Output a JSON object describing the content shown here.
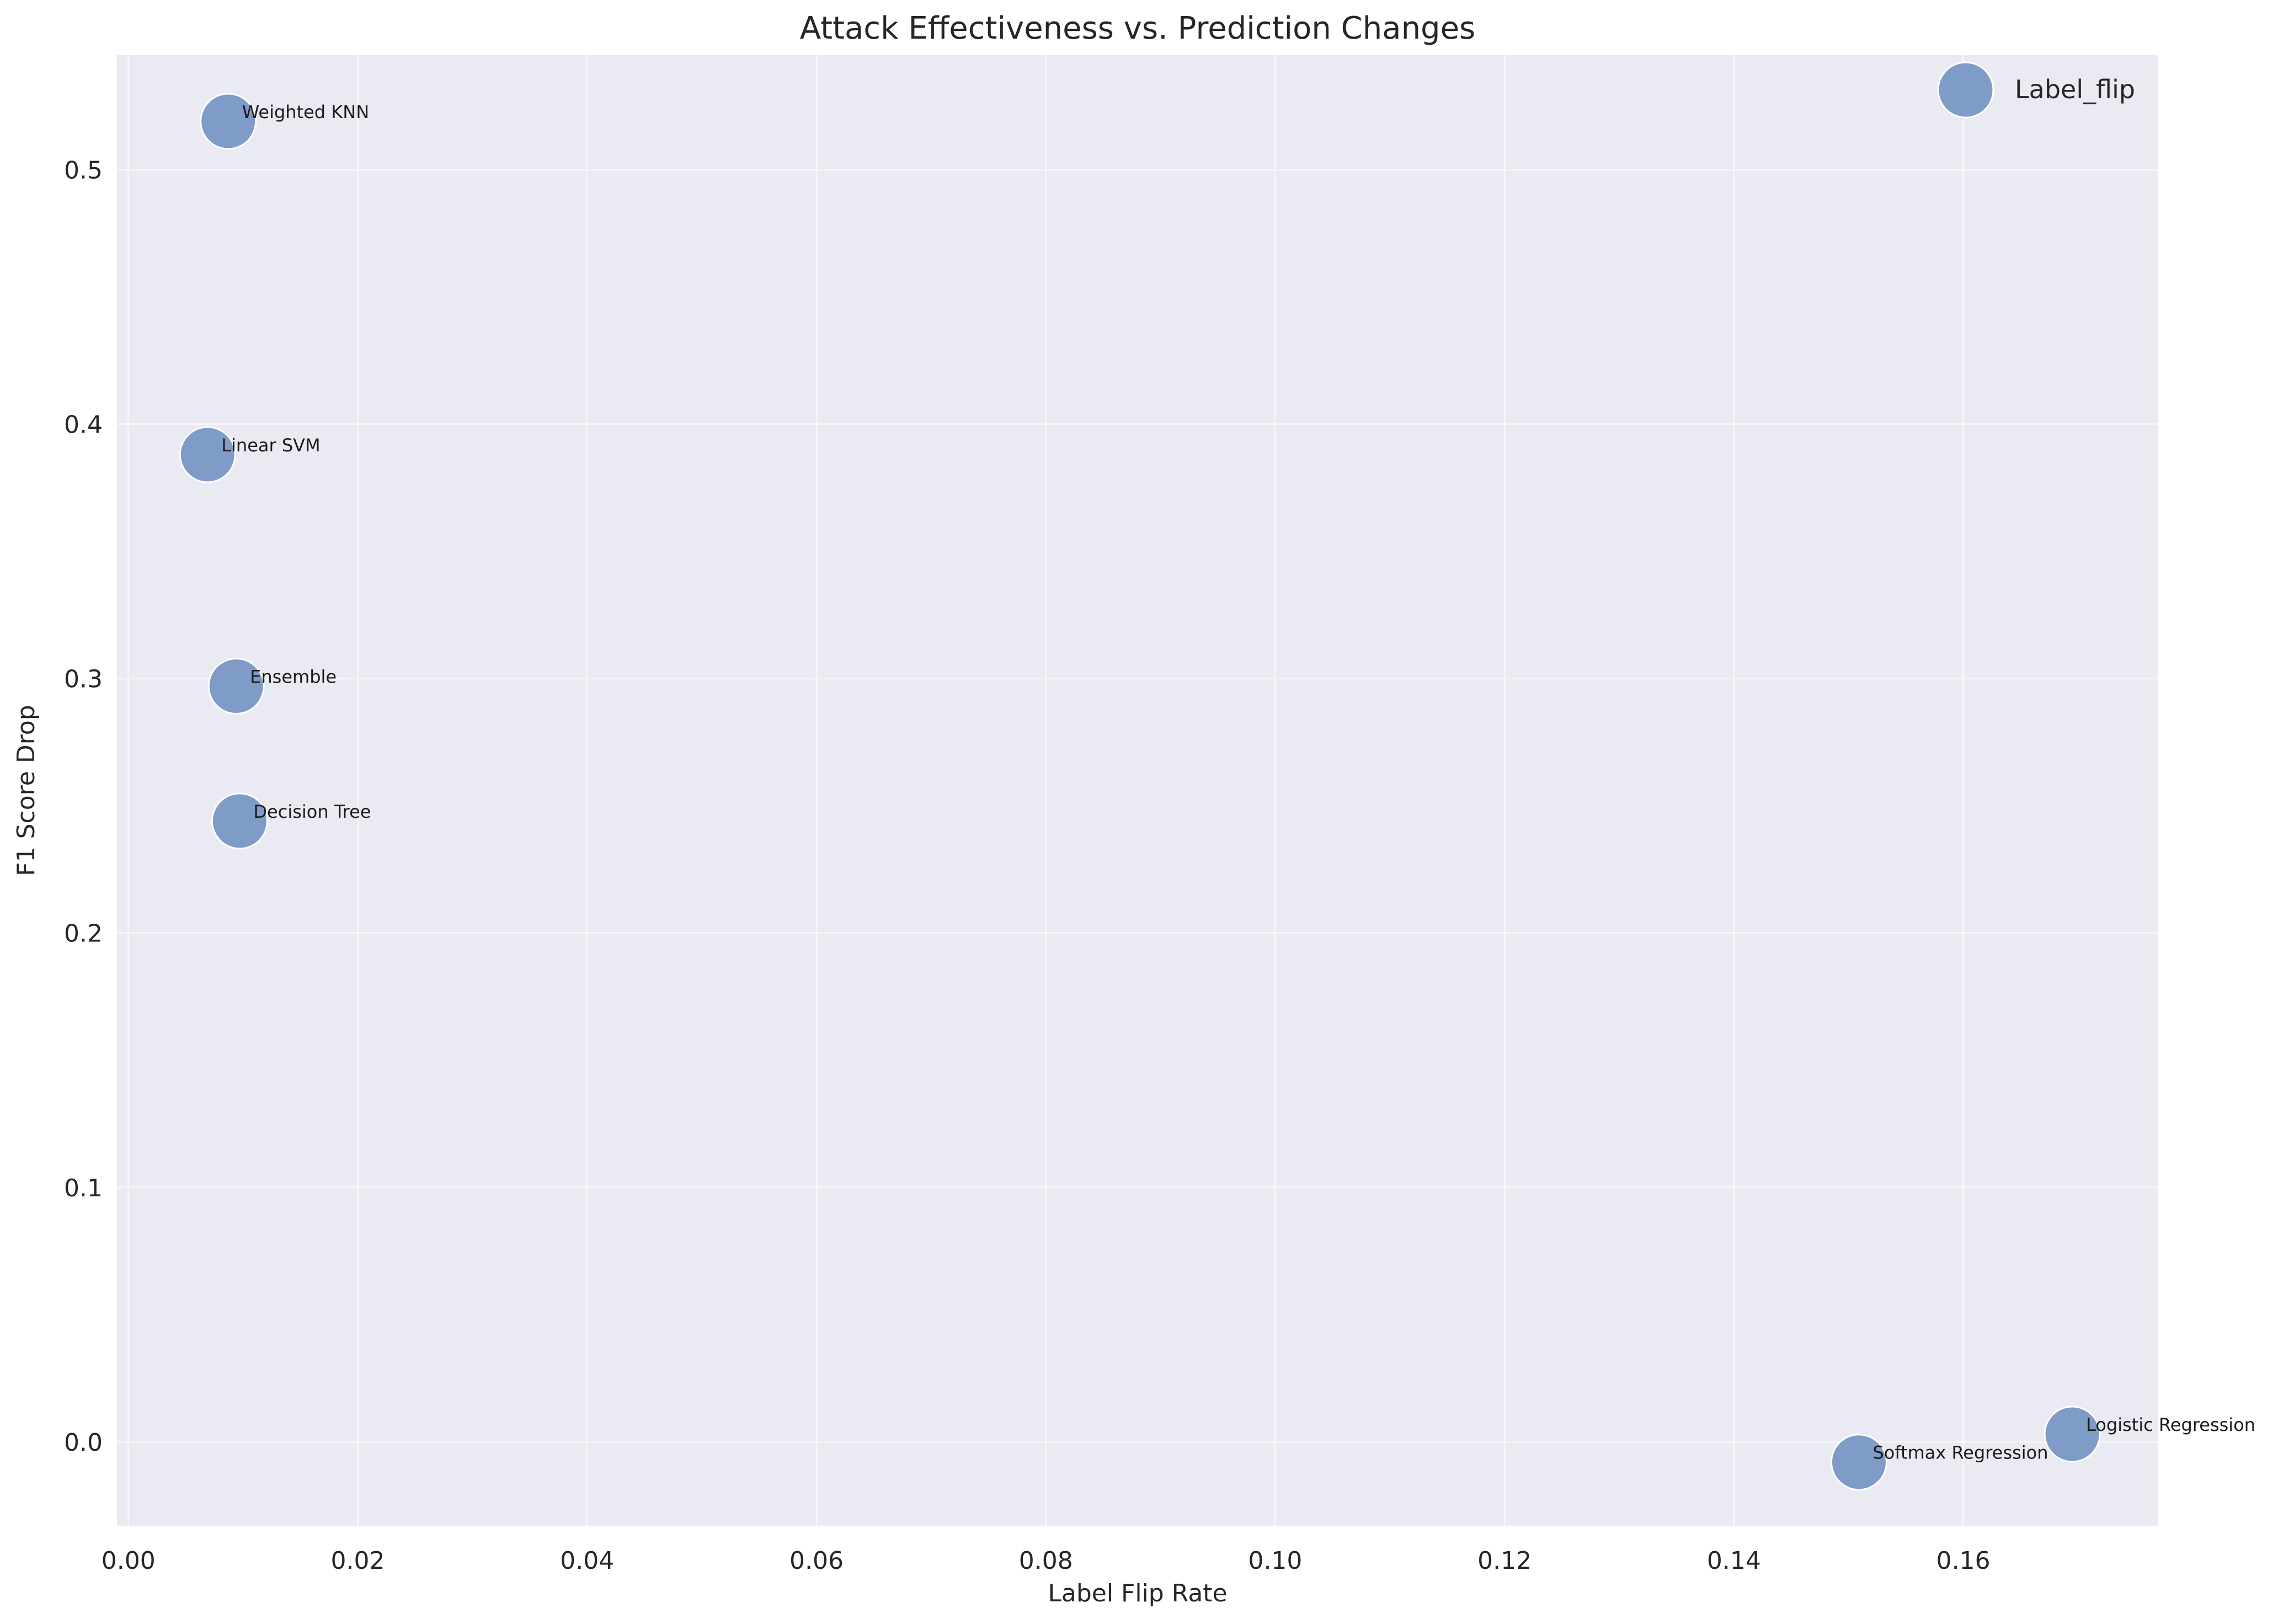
{
  "chart_data": {
    "type": "scatter",
    "title": "Attack Effectiveness vs. Prediction Changes",
    "xlabel": "Label Flip Rate",
    "ylabel": "F1 Score Drop",
    "xlim": [
      -0.001,
      0.177
    ],
    "ylim": [
      -0.033,
      0.545
    ],
    "xticks": [
      0.0,
      0.02,
      0.04,
      0.06,
      0.08,
      0.1,
      0.12,
      0.14,
      0.16
    ],
    "xtick_labels": [
      "0.00",
      "0.02",
      "0.04",
      "0.06",
      "0.08",
      "0.10",
      "0.12",
      "0.14",
      "0.16"
    ],
    "yticks": [
      0.0,
      0.1,
      0.2,
      0.3,
      0.4,
      0.5
    ],
    "ytick_labels": [
      "0.0",
      "0.1",
      "0.2",
      "0.3",
      "0.4",
      "0.5"
    ],
    "grid": true,
    "legend_position": "top-right",
    "series": [
      {
        "name": "Label_flip",
        "color": "#6f8fc2",
        "points": [
          {
            "label": "Weighted KNN",
            "x": 0.0087,
            "y": 0.519
          },
          {
            "label": "Linear SVM",
            "x": 0.0069,
            "y": 0.388
          },
          {
            "label": "Ensemble",
            "x": 0.0094,
            "y": 0.297
          },
          {
            "label": "Decision Tree",
            "x": 0.0097,
            "y": 0.244
          },
          {
            "label": "Logistic Regression",
            "x": 0.1695,
            "y": 0.003
          },
          {
            "label": "Softmax Regression",
            "x": 0.1509,
            "y": -0.008
          }
        ]
      }
    ]
  }
}
